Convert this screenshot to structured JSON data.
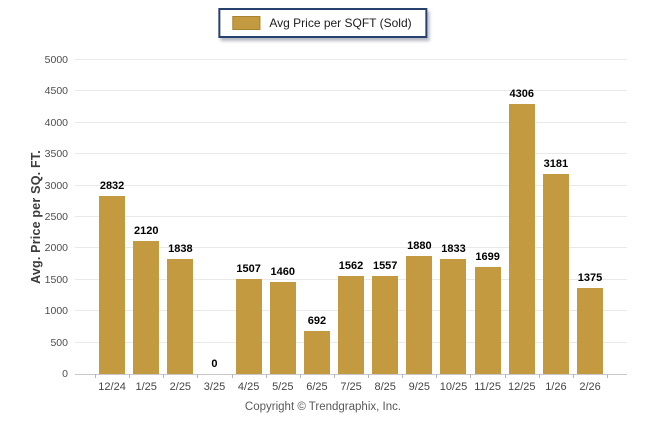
{
  "legend": {
    "label": "Avg Price per SQFT (Sold)"
  },
  "footer": {
    "text": "Copyright © Trendgraphix, Inc."
  },
  "colors": {
    "bar": "#c49a40",
    "legend_border": "#27406e",
    "gridline": "#e9e9e9",
    "axis_line": "#c9c9c9"
  },
  "chart_data": {
    "type": "bar",
    "title": "Avg Price per SQFT (Sold)",
    "categories": [
      "12/24",
      "1/25",
      "2/25",
      "3/25",
      "4/25",
      "5/25",
      "6/25",
      "7/25",
      "8/25",
      "9/25",
      "10/25",
      "11/25",
      "12/25",
      "1/26",
      "2/26"
    ],
    "values": [
      2832,
      2120,
      1838,
      0,
      1507,
      1460,
      692,
      1562,
      1557,
      1880,
      1833,
      1699,
      4306,
      3181,
      1375
    ],
    "xlabel": "",
    "ylabel": "Avg. Price per SQ. FT.",
    "ylim": [
      0,
      5000
    ],
    "ytick_step": 500,
    "grid": "horizontal",
    "legend_position": "top-center",
    "value_labels": true
  }
}
